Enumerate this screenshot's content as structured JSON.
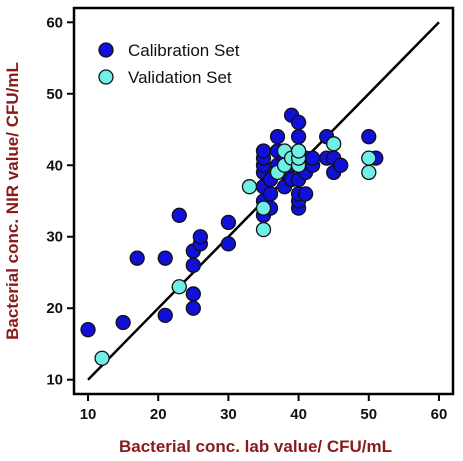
{
  "colors": {
    "calibration_fill": "#1010d8",
    "validation_fill": "#6ff0e6",
    "marker_stroke": "#111111",
    "axis_title": "#8b1a1a",
    "frame": "#000000"
  },
  "chart_data": {
    "type": "scatter",
    "title": "",
    "xlabel": "Bacterial conc. lab value/ CFU/mL",
    "ylabel": "Bacterial conc. NIR value/ CFU/mL",
    "xlim": [
      8,
      62
    ],
    "ylim": [
      8,
      62
    ],
    "x_ticks": [
      10,
      20,
      30,
      40,
      50,
      60
    ],
    "y_ticks": [
      10,
      20,
      30,
      40,
      50,
      60
    ],
    "grid": false,
    "legend_position": "top-left",
    "reference_line": {
      "from": [
        10,
        10
      ],
      "to": [
        60,
        60
      ],
      "label": ""
    },
    "series": [
      {
        "name": "Calibration Set",
        "color": "#1010d8",
        "points": [
          [
            10,
            17
          ],
          [
            15,
            18
          ],
          [
            17,
            27
          ],
          [
            21,
            19
          ],
          [
            21,
            27
          ],
          [
            23,
            33
          ],
          [
            25,
            20
          ],
          [
            25,
            22
          ],
          [
            25,
            26
          ],
          [
            25,
            28
          ],
          [
            26,
            29
          ],
          [
            26,
            30
          ],
          [
            30,
            29
          ],
          [
            30,
            32
          ],
          [
            35,
            33
          ],
          [
            35,
            35
          ],
          [
            35,
            37
          ],
          [
            35,
            39
          ],
          [
            35,
            40
          ],
          [
            35,
            41
          ],
          [
            35,
            42
          ],
          [
            36,
            34
          ],
          [
            36,
            36
          ],
          [
            36,
            38
          ],
          [
            37,
            40
          ],
          [
            37,
            42
          ],
          [
            37,
            44
          ],
          [
            38,
            37
          ],
          [
            38,
            39
          ],
          [
            38,
            41
          ],
          [
            39,
            38
          ],
          [
            39,
            40
          ],
          [
            39,
            47
          ],
          [
            40,
            34
          ],
          [
            40,
            35
          ],
          [
            40,
            36
          ],
          [
            40,
            38
          ],
          [
            40,
            40
          ],
          [
            40,
            42
          ],
          [
            40,
            44
          ],
          [
            40,
            46
          ],
          [
            41,
            36
          ],
          [
            41,
            39
          ],
          [
            41,
            41
          ],
          [
            42,
            40
          ],
          [
            42,
            41
          ],
          [
            44,
            41
          ],
          [
            44,
            44
          ],
          [
            45,
            39
          ],
          [
            45,
            41
          ],
          [
            46,
            40
          ],
          [
            50,
            44
          ],
          [
            51,
            41
          ]
        ]
      },
      {
        "name": "Validation Set",
        "color": "#6ff0e6",
        "points": [
          [
            12,
            13
          ],
          [
            23,
            23
          ],
          [
            33,
            37
          ],
          [
            35,
            31
          ],
          [
            35,
            34
          ],
          [
            37,
            39
          ],
          [
            38,
            40
          ],
          [
            38,
            42
          ],
          [
            39,
            41
          ],
          [
            40,
            40
          ],
          [
            40,
            41
          ],
          [
            40,
            42
          ],
          [
            45,
            43
          ],
          [
            50,
            39
          ],
          [
            50,
            41
          ]
        ]
      }
    ]
  }
}
